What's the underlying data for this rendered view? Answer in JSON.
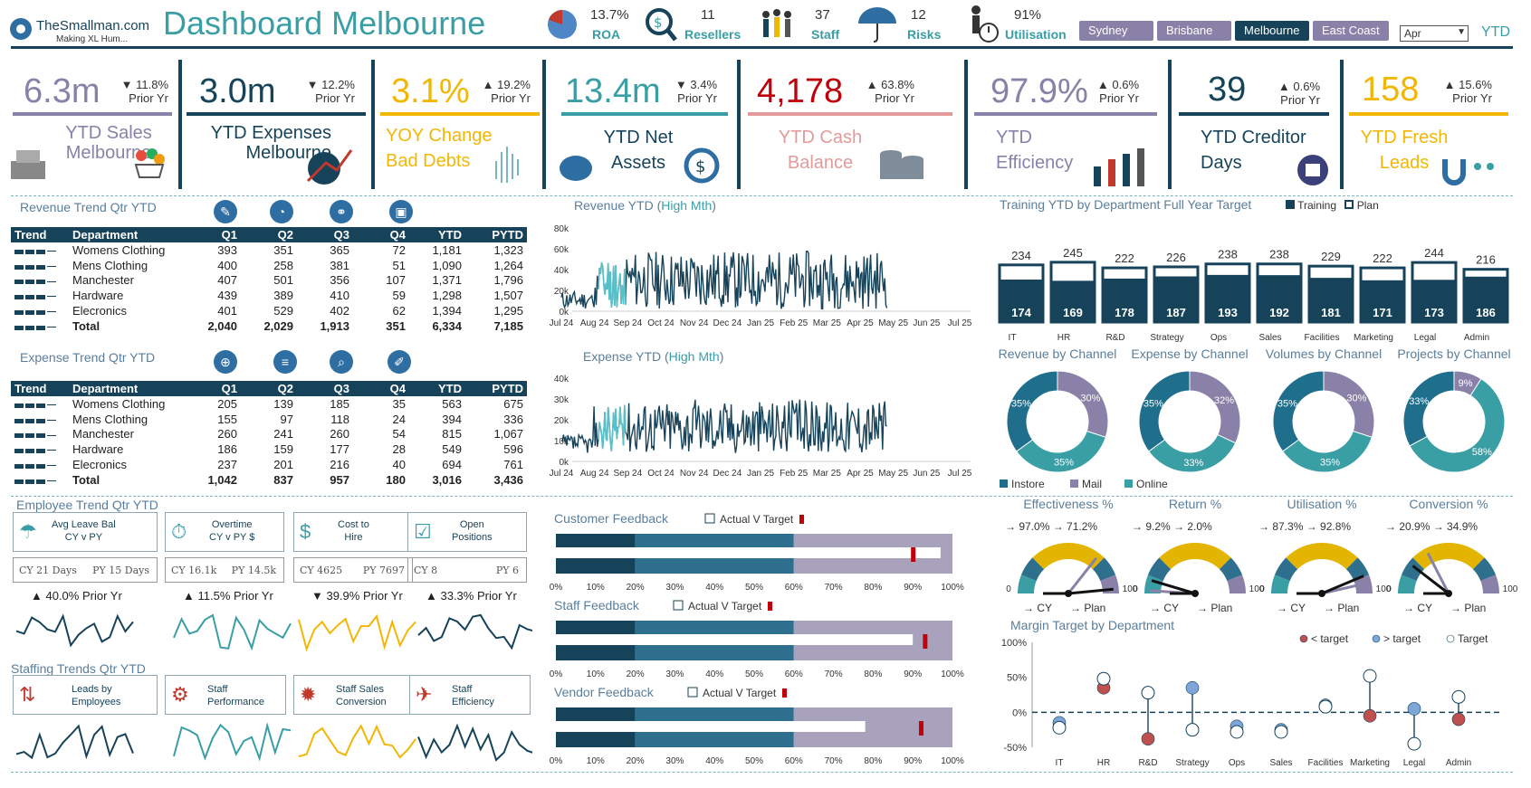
{
  "brand": {
    "name": "TheSmallman.com",
    "tagline": "Making XL Hum..."
  },
  "title": "Dashboard Melbourne",
  "header_stats": [
    {
      "value": "13.7%",
      "label": "ROA",
      "icon": "pie-icon"
    },
    {
      "value": "11",
      "label": "Resellers",
      "icon": "magnifier-dollar-icon"
    },
    {
      "value": "37",
      "label": "Staff",
      "icon": "people-icon"
    },
    {
      "value": "12",
      "label": "Risks",
      "icon": "umbrella-icon"
    },
    {
      "value": "91%",
      "label": "Utilisation",
      "icon": "clock-person-icon"
    }
  ],
  "cities": [
    "Sydney",
    "Brisbane",
    "Melbourne",
    "East Coast"
  ],
  "active_city": "Melbourne",
  "month_select": "Apr",
  "ytd_label": "YTD",
  "kpis": [
    {
      "value": "6.3m",
      "change": "▼ 11.8%",
      "prior": "Prior Yr",
      "label1": "YTD Sales",
      "label2": "Melbourne",
      "color": "#8a81a8"
    },
    {
      "value": "3.0m",
      "change": "▼ 12.2%",
      "prior": "Prior Yr",
      "label1": "YTD Expenses",
      "label2": "Melbourne",
      "color": "#16435a"
    },
    {
      "value": "3.1%",
      "change": "▲ 19.2%",
      "prior": "Prior Yr",
      "label1": "YOY Change",
      "label2": "Bad Debts",
      "color": "#f2b705"
    },
    {
      "value": "13.4m",
      "change": "▼ 3.4%",
      "prior": "Prior Yr",
      "label1": "YTD Net",
      "label2": "Assets",
      "color": "#3a9ea5"
    },
    {
      "value": "4,178",
      "change": "▲ 63.8%",
      "prior": "Prior Yr",
      "label1": "YTD Cash",
      "label2": "Balance",
      "color": "#c0000b"
    },
    {
      "value": "97.9%",
      "change": "▲ 0.6%",
      "prior": "Prior Yr",
      "label1": "YTD",
      "label2": "Efficiency",
      "color": "#8a81a8"
    },
    {
      "value": "39",
      "change": "▲ 0.6%",
      "prior": "Prior Yr",
      "label1": "YTD Creditor",
      "label2": "Days",
      "color": "#16435a"
    },
    {
      "value": "158",
      "change": "▲ 15.6%",
      "prior": "Prior Yr",
      "label1": "YTD Fresh",
      "label2": "Leads",
      "color": "#f2b705"
    }
  ],
  "revenue_table": {
    "title": "Revenue Trend Qtr YTD",
    "headers": [
      "Trend",
      "Department",
      "Q1",
      "Q2",
      "Q3",
      "Q4",
      "YTD",
      "PYTD"
    ],
    "rows": [
      [
        "Womens Clothing",
        "393",
        "351",
        "365",
        "72",
        "1,181",
        "1,323"
      ],
      [
        "Mens Clothing",
        "400",
        "258",
        "381",
        "51",
        "1,090",
        "1,264"
      ],
      [
        "Manchester",
        "407",
        "501",
        "356",
        "107",
        "1,371",
        "1,796"
      ],
      [
        "Hardware",
        "439",
        "389",
        "410",
        "59",
        "1,298",
        "1,507"
      ],
      [
        "Elecronics",
        "401",
        "529",
        "402",
        "62",
        "1,394",
        "1,295"
      ],
      [
        "Total",
        "2,040",
        "2,029",
        "1,913",
        "351",
        "6,334",
        "7,185"
      ]
    ]
  },
  "expense_table": {
    "title": "Expense Trend Qtr YTD",
    "headers": [
      "Trend",
      "Department",
      "Q1",
      "Q2",
      "Q3",
      "Q4",
      "YTD",
      "PYTD"
    ],
    "rows": [
      [
        "Womens Clothing",
        "205",
        "139",
        "185",
        "35",
        "563",
        "675"
      ],
      [
        "Mens Clothing",
        "155",
        "97",
        "118",
        "24",
        "394",
        "336"
      ],
      [
        "Manchester",
        "260",
        "241",
        "260",
        "54",
        "815",
        "1,067"
      ],
      [
        "Hardware",
        "186",
        "159",
        "177",
        "28",
        "549",
        "596"
      ],
      [
        "Elecronics",
        "237",
        "201",
        "216",
        "40",
        "694",
        "761"
      ],
      [
        "Total",
        "1,042",
        "837",
        "957",
        "180",
        "3,016",
        "3,436"
      ]
    ]
  },
  "revenue_ytd": {
    "title": "Revenue YTD (",
    "highlight": "High Mth",
    "close": ")",
    "yticks": [
      "80k",
      "60k",
      "40k",
      "20k",
      "0k"
    ],
    "xticks": [
      "Jul 24",
      "Aug 24",
      "Sep 24",
      "Oct 24",
      "Nov 24",
      "Dec 24",
      "Jan 25",
      "Feb 25",
      "Mar 25",
      "Apr 25",
      "May 25",
      "Jun 25",
      "Jul 25"
    ]
  },
  "expense_ytd": {
    "title": "Expense YTD (",
    "highlight": "High Mth",
    "close": ")",
    "yticks": [
      "40k",
      "30k",
      "20k",
      "10k",
      "0k"
    ],
    "xticks": [
      "Jul 24",
      "Aug 24",
      "Sep 24",
      "Oct 24",
      "Nov 24",
      "Dec 24",
      "Jan 25",
      "Feb 25",
      "Mar 25",
      "Apr 25",
      "May 25",
      "Jun 25",
      "Jul 25"
    ]
  },
  "chart_data": [
    {
      "type": "bar",
      "title": "Training YTD by Department Full Year Target",
      "legend": [
        "Training",
        "Plan"
      ],
      "categories": [
        "IT",
        "HR",
        "R&D",
        "Strategy",
        "Ops",
        "Sales",
        "Facilities",
        "Marketing",
        "Legal",
        "Admin"
      ],
      "series": [
        {
          "name": "Training",
          "values": [
            174,
            169,
            178,
            187,
            193,
            192,
            181,
            171,
            173,
            186
          ]
        },
        {
          "name": "Plan",
          "values": [
            234,
            245,
            222,
            226,
            238,
            238,
            229,
            222,
            244,
            216
          ]
        }
      ]
    },
    {
      "type": "pie",
      "title": "Revenue by Channel",
      "labels": [
        "Instore",
        "Mail",
        "Online"
      ],
      "values": [
        35,
        30,
        35
      ]
    },
    {
      "type": "pie",
      "title": "Expense by Channel",
      "labels": [
        "Instore",
        "Mail",
        "Online"
      ],
      "values": [
        35,
        32,
        33
      ]
    },
    {
      "type": "pie",
      "title": "Volumes by Channel",
      "labels": [
        "Instore",
        "Mail",
        "Online"
      ],
      "values": [
        35,
        30,
        35
      ]
    },
    {
      "type": "pie",
      "title": "Projects by Channel",
      "labels": [
        "Instore",
        "Mail",
        "Online"
      ],
      "values": [
        33,
        9,
        58
      ]
    },
    {
      "type": "scatter",
      "title": "Margin Target by Department",
      "legend": [
        "< target",
        "> target",
        "Target"
      ],
      "yticks": [
        "100%",
        "50%",
        "0%",
        "-50%"
      ],
      "categories": [
        "IT",
        "HR",
        "R&D",
        "Strategy",
        "Ops",
        "Sales",
        "Facilities",
        "Marketing",
        "Legal",
        "Admin"
      ],
      "actual": [
        -0.15,
        0.35,
        -0.38,
        0.35,
        -0.2,
        -0.25,
        0.1,
        -0.05,
        0.05,
        -0.1
      ],
      "target": [
        -0.22,
        0.48,
        0.28,
        -0.25,
        -0.28,
        -0.28,
        0.08,
        0.52,
        -0.45,
        0.22
      ]
    }
  ],
  "legend_channels": [
    "Instore",
    "Mail",
    "Online"
  ],
  "feedback": [
    {
      "title": "Customer Feedback",
      "legend": "Actual V Target",
      "actual": 0.97,
      "target": 0.9
    },
    {
      "title": "Staff Feedback",
      "legend": "Actual V Target",
      "actual": 0.9,
      "target": 0.93
    },
    {
      "title": "Vendor Feedback",
      "legend": "Actual V Target",
      "actual": 0.78,
      "target": 0.92
    }
  ],
  "pct_ticks": [
    "0%",
    "10%",
    "20%",
    "30%",
    "40%",
    "50%",
    "60%",
    "70%",
    "80%",
    "90%",
    "100%"
  ],
  "employee": {
    "title": "Employee Trend Qtr YTD",
    "cards": [
      {
        "l1": "Avg Leave Bal",
        "l2": "CY v PY",
        "cy": "CY 21 Days",
        "py": "PY 15 Days",
        "chg": "▲  40.0% Prior Yr"
      },
      {
        "l1": "Overtime",
        "l2": "CY v PY $",
        "cy": "CY 16.1k",
        "py": "PY 14.5k",
        "chg": "▲  11.5% Prior Yr"
      },
      {
        "l1": "Cost to",
        "l2": "Hire",
        "cy": "CY 4625",
        "py": "PY 7697",
        "chg": "▼  39.9% Prior Yr"
      },
      {
        "l1": "Open",
        "l2": "Positions",
        "cy": "CY 8",
        "py": "PY 6",
        "chg": "▲  33.3% Prior Yr"
      }
    ]
  },
  "staffing": {
    "title": "Staffing Trends Qtr YTD",
    "cards": [
      {
        "l1": "Leads by",
        "l2": "Employees"
      },
      {
        "l1": "Staff",
        "l2": "Performance"
      },
      {
        "l1": "Staff  Sales",
        "l2": "Conversion"
      },
      {
        "l1": "Staff",
        "l2": "Efficiency"
      }
    ]
  },
  "gauges": [
    {
      "title": "Effectiveness %",
      "cy": "97.0%",
      "plan": "71.2%"
    },
    {
      "title": "Return %",
      "cy": "9.2%",
      "plan": "2.0%"
    },
    {
      "title": "Utilisation %",
      "cy": "87.3%",
      "plan": "92.8%"
    },
    {
      "title": "Conversion %",
      "cy": "20.9%",
      "plan": "34.9%"
    }
  ],
  "gauge_labels": {
    "min": "0",
    "max": "100",
    "cy": "CY",
    "plan": "Plan"
  }
}
